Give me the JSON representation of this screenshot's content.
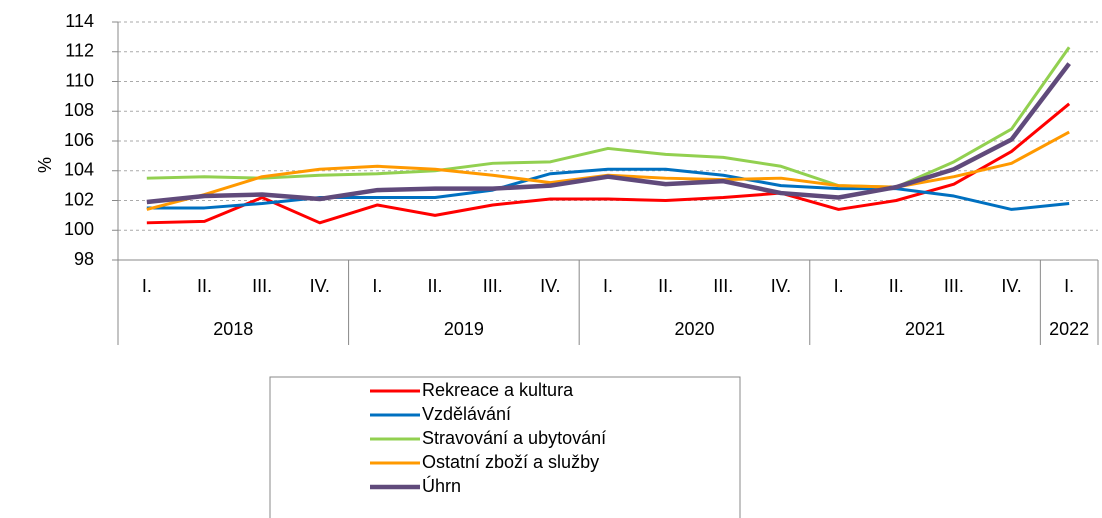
{
  "chart_data": {
    "type": "line",
    "y_label": "%",
    "categories": [
      "I.",
      "II.",
      "III.",
      "IV.",
      "I.",
      "II.",
      "III.",
      "IV.",
      "I.",
      "II.",
      "III.",
      "IV.",
      "I.",
      "II.",
      "III.",
      "IV.",
      "I."
    ],
    "year_groups": [
      {
        "label": "2018",
        "count": 4
      },
      {
        "label": "2019",
        "count": 4
      },
      {
        "label": "2020",
        "count": 4
      },
      {
        "label": "2021",
        "count": 4
      },
      {
        "label": "2022",
        "count": 1
      }
    ],
    "ylim": [
      98,
      114
    ],
    "yticks": [
      98,
      100,
      102,
      104,
      106,
      108,
      110,
      112,
      114
    ],
    "grid": true,
    "series": [
      {
        "name": "Rekreace a kultura",
        "color": "#ff0000",
        "values": [
          100.5,
          100.6,
          102.2,
          100.5,
          101.7,
          101.0,
          101.7,
          102.1,
          102.1,
          102.0,
          102.2,
          102.5,
          101.4,
          102.0,
          103.1,
          105.3,
          108.5
        ]
      },
      {
        "name": "Vzdělávání",
        "color": "#0070c0",
        "values": [
          101.5,
          101.5,
          101.8,
          102.2,
          102.2,
          102.2,
          102.7,
          103.8,
          104.1,
          104.1,
          103.7,
          103.0,
          102.8,
          102.8,
          102.3,
          101.4,
          101.8
        ]
      },
      {
        "name": "Stravování a ubytování",
        "color": "#92d050",
        "values": [
          103.5,
          103.6,
          103.5,
          103.7,
          103.8,
          104.0,
          104.5,
          104.6,
          105.5,
          105.1,
          104.9,
          104.3,
          103.0,
          102.9,
          104.6,
          106.8,
          112.3
        ]
      },
      {
        "name": "Ostatní zboží a služby",
        "color": "#ff9900",
        "values": [
          101.4,
          102.4,
          103.6,
          104.1,
          104.3,
          104.1,
          103.7,
          103.2,
          103.7,
          103.5,
          103.4,
          103.5,
          103.0,
          102.9,
          103.6,
          104.5,
          106.6
        ]
      },
      {
        "name": "Úhrn",
        "color": "#604a7b",
        "values": [
          101.9,
          102.3,
          102.4,
          102.1,
          102.7,
          102.8,
          102.8,
          103.0,
          103.6,
          103.1,
          103.3,
          102.5,
          102.2,
          102.9,
          104.1,
          106.1,
          111.2
        ]
      }
    ]
  }
}
